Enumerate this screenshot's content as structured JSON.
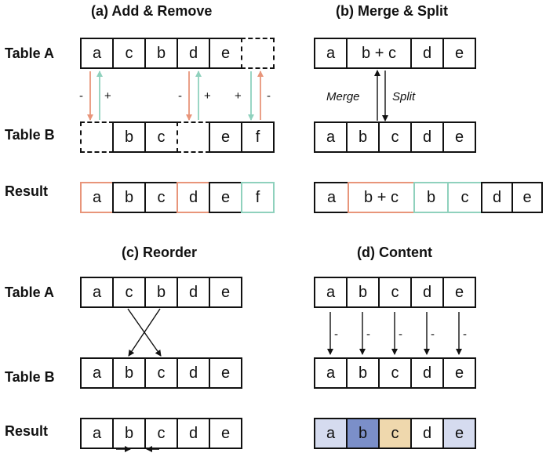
{
  "panels": {
    "a": {
      "title": "(a) Add & Remove",
      "labels": [
        "Table A",
        "Table B",
        "Result"
      ],
      "tableA": [
        "a",
        "c",
        "b",
        "d",
        "e",
        ""
      ],
      "tableB": [
        "",
        "b",
        "c",
        "",
        "e",
        "f"
      ],
      "result": [
        "a",
        "b",
        "c",
        "d",
        "e",
        "f"
      ],
      "signs": [
        "-",
        "+",
        "-",
        "+",
        "+",
        "-"
      ]
    },
    "b": {
      "title": "(b) Merge & Split",
      "tableA": [
        "a",
        "b + c",
        "d",
        "e"
      ],
      "tableB": [
        "a",
        "b",
        "c",
        "d",
        "e"
      ],
      "result": [
        "a",
        "b + c",
        "b",
        "c",
        "d",
        "e"
      ],
      "merge_label": "Merge",
      "split_label": "Split"
    },
    "c": {
      "title": "(c) Reorder",
      "labels": [
        "Table A",
        "Table B",
        "Result"
      ],
      "tableA": [
        "a",
        "c",
        "b",
        "d",
        "e"
      ],
      "tableB": [
        "a",
        "b",
        "c",
        "d",
        "e"
      ],
      "result": [
        "a",
        "b",
        "c",
        "d",
        "e"
      ]
    },
    "d": {
      "title": "(d) Content",
      "tableA": [
        "a",
        "b",
        "c",
        "d",
        "e"
      ],
      "tableB": [
        "a",
        "b",
        "c",
        "d",
        "e"
      ],
      "result": [
        "a",
        "b",
        "c",
        "d",
        "e"
      ],
      "signs": [
        "-",
        "-",
        "-",
        "-",
        "-"
      ]
    }
  },
  "colors": {
    "remove": "#e8957a",
    "add": "#8fd1bd",
    "light_blue": "#d5dbef",
    "dark_blue": "#7b8fc9",
    "tan": "#efd8ad"
  }
}
